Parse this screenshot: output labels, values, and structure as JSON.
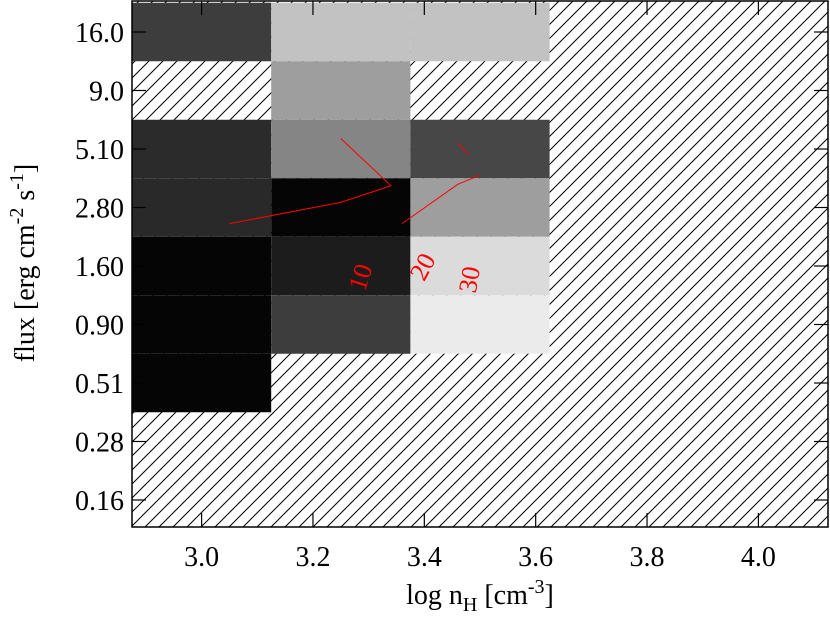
{
  "chart_data": {
    "type": "heatmap",
    "xlabel": {
      "base": "log n",
      "sub": "H",
      "unit_open": " [cm",
      "unit_exp": "-3",
      "unit_close": "]"
    },
    "ylabel": {
      "base": "flux [erg cm",
      "exp1": "-2",
      "mid": " s",
      "exp2": "-1",
      "end": "]"
    },
    "x_tick_labels": [
      "3.0",
      "3.2",
      "3.4",
      "3.6",
      "3.8",
      "4.0"
    ],
    "x_tick_values": [
      3.0,
      3.2,
      3.4,
      3.6,
      3.8,
      4.0
    ],
    "x_range": [
      2.875,
      4.125
    ],
    "y_tick_labels": [
      "16.0",
      "9.0",
      "5.10",
      "2.80",
      "1.60",
      "0.90",
      "0.51",
      "0.28",
      "0.16"
    ],
    "y_rows": 9,
    "x_cells": [
      3.0,
      3.25,
      3.5
    ],
    "z_gray": [
      [
        0.24,
        0.76,
        0.76
      ],
      [
        null,
        0.62,
        null
      ],
      [
        0.17,
        0.52,
        0.28
      ],
      [
        0.16,
        0.02,
        0.62
      ],
      [
        0.02,
        0.11,
        0.86
      ],
      [
        0.02,
        0.24,
        0.92
      ],
      [
        0.02,
        null,
        null
      ],
      [
        null,
        null,
        null
      ],
      [
        null,
        null,
        null
      ]
    ],
    "missing_fill": "diagonal hatch",
    "contours": [
      {
        "level": "10",
        "color": "#ff0000",
        "points": [
          [
            3.05,
            2.4
          ],
          [
            3.25,
            2.95
          ],
          [
            3.34,
            3.5
          ],
          [
            3.25,
            5.65
          ]
        ]
      },
      {
        "level": "20",
        "color": "#ff0000",
        "points": [
          [
            3.36,
            2.4
          ],
          [
            3.46,
            3.55
          ],
          [
            3.5,
            3.9
          ]
        ]
      },
      {
        "level": "30",
        "color": "#ff0000",
        "points": [
          [
            3.46,
            5.4
          ],
          [
            3.48,
            4.8
          ]
        ]
      }
    ]
  }
}
